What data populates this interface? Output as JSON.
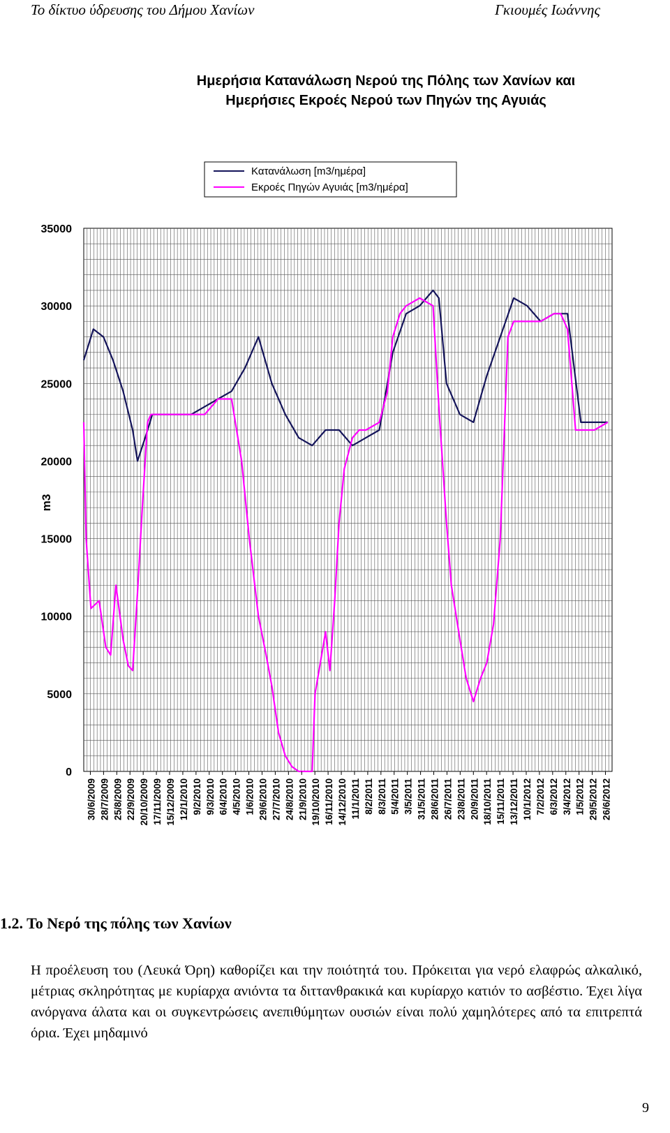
{
  "header": {
    "left": "Το δίκτυο ύδρευσης του Δήμου Χανίων",
    "right": "Γκιουμές Ιωάννης"
  },
  "chart_data": {
    "type": "line",
    "title_lines": [
      "Ημερήσια Κατανάλωση Νερού της Πόλης των Χανίων και",
      "Ημερήσιες Εκροές Νερού των Πηγών της Αγυιάς"
    ],
    "ylabel": "m3",
    "ylim": [
      0,
      35000
    ],
    "yticks": [
      0,
      5000,
      10000,
      15000,
      20000,
      25000,
      30000,
      35000
    ],
    "grid": true,
    "legend_position": "top-center",
    "x_tick_labels": [
      "30/6/2009",
      "28/7/2009",
      "25/8/2009",
      "22/9/2009",
      "20/10/2009",
      "17/11/2009",
      "15/12/2009",
      "12/1/2010",
      "9/2/2010",
      "9/3/2010",
      "6/4/2010",
      "4/5/2010",
      "1/6/2010",
      "29/6/2010",
      "27/7/2010",
      "24/8/2010",
      "21/9/2010",
      "19/10/2010",
      "16/11/2010",
      "14/12/2010",
      "11/1/2011",
      "8/2/2011",
      "8/3/2011",
      "5/4/2011",
      "3/5/2011",
      "31/5/2011",
      "28/6/2011",
      "26/7/2011",
      "23/8/2011",
      "20/9/2011",
      "18/10/2011",
      "15/11/2011",
      "13/12/2011",
      "10/1/2012",
      "7/2/2012",
      "6/3/2012",
      "3/4/2012",
      "1/5/2012",
      "29/5/2012",
      "26/6/2012"
    ],
    "series": [
      {
        "name": "Κατανάλωση [m3/ημέρα]",
        "color": "#14145a",
        "x": [
          "2009-06-30",
          "2009-07-20",
          "2009-08-10",
          "2009-08-30",
          "2009-09-20",
          "2009-10-10",
          "2009-10-20",
          "2009-11-05",
          "2009-11-20",
          "2009-12-15",
          "2010-01-12",
          "2010-02-09",
          "2010-03-09",
          "2010-04-06",
          "2010-05-04",
          "2010-06-01",
          "2010-06-29",
          "2010-07-27",
          "2010-08-24",
          "2010-09-21",
          "2010-10-19",
          "2010-11-16",
          "2010-12-14",
          "2011-01-11",
          "2011-02-08",
          "2011-03-08",
          "2011-04-05",
          "2011-05-03",
          "2011-05-31",
          "2011-06-28",
          "2011-07-10",
          "2011-07-26",
          "2011-08-23",
          "2011-09-20",
          "2011-10-18",
          "2011-11-15",
          "2011-12-13",
          "2012-01-10",
          "2012-02-07",
          "2012-03-06",
          "2012-04-03",
          "2012-05-01",
          "2012-05-29",
          "2012-06-26"
        ],
        "y": [
          26500,
          28500,
          28000,
          26500,
          24500,
          22000,
          20000,
          21500,
          23000,
          23000,
          23000,
          23000,
          23500,
          24000,
          24500,
          26000,
          28000,
          25000,
          23000,
          21500,
          21000,
          22000,
          22000,
          21000,
          21500,
          22000,
          27000,
          29500,
          30000,
          31000,
          30500,
          25000,
          23000,
          22500,
          25500,
          28000,
          30500,
          30000,
          29000,
          29500,
          29500,
          22500,
          22500,
          22500
        ]
      },
      {
        "name": "Εκροές Πηγών Αγυιάς [m3/ημέρα]",
        "color": "#ff00ff",
        "x": [
          "2009-06-30",
          "2009-07-05",
          "2009-07-15",
          "2009-08-01",
          "2009-08-15",
          "2009-08-25",
          "2009-09-05",
          "2009-09-20",
          "2009-10-01",
          "2009-10-10",
          "2009-10-20",
          "2009-10-30",
          "2009-11-10",
          "2009-11-17",
          "2009-12-15",
          "2010-01-12",
          "2010-02-09",
          "2010-03-09",
          "2010-04-06",
          "2010-05-04",
          "2010-05-25",
          "2010-06-10",
          "2010-06-29",
          "2010-07-15",
          "2010-07-27",
          "2010-08-10",
          "2010-08-24",
          "2010-09-07",
          "2010-09-21",
          "2010-10-05",
          "2010-10-19",
          "2010-10-25",
          "2010-11-05",
          "2010-11-16",
          "2010-11-25",
          "2010-12-05",
          "2010-12-14",
          "2010-12-25",
          "2011-01-11",
          "2011-01-25",
          "2011-02-08",
          "2011-03-08",
          "2011-03-25",
          "2011-04-05",
          "2011-04-20",
          "2011-05-03",
          "2011-05-31",
          "2011-06-28",
          "2011-07-10",
          "2011-07-26",
          "2011-08-05",
          "2011-08-23",
          "2011-09-05",
          "2011-09-20",
          "2011-10-05",
          "2011-10-18",
          "2011-11-01",
          "2011-11-15",
          "2011-12-01",
          "2011-12-13",
          "2012-01-10",
          "2012-02-07",
          "2012-03-06",
          "2012-03-20",
          "2012-04-03",
          "2012-04-20",
          "2012-05-01",
          "2012-05-29",
          "2012-06-26"
        ],
        "y": [
          22500,
          15000,
          10500,
          11000,
          8000,
          7500,
          12000,
          8500,
          6800,
          6500,
          11500,
          17000,
          22500,
          23000,
          23000,
          23000,
          23000,
          23000,
          24000,
          24000,
          20000,
          15000,
          10000,
          7500,
          5500,
          2500,
          1000,
          300,
          0,
          0,
          0,
          5000,
          7000,
          9000,
          6500,
          11000,
          16000,
          19500,
          21500,
          22000,
          22000,
          22500,
          24500,
          28000,
          29500,
          30000,
          30500,
          30000,
          23500,
          16000,
          12000,
          8500,
          6000,
          4500,
          6000,
          7000,
          9500,
          15000,
          28000,
          29000,
          29000,
          29000,
          29500,
          29500,
          28500,
          22000,
          22000,
          22000,
          22500
        ]
      }
    ]
  },
  "section": {
    "number": "1.2.",
    "title": "Το Νερό της πόλης των Χανίων"
  },
  "paragraph": "Η προέλευση του (Λευκά Όρη) καθορίζει και την ποιότητά του. Πρόκειται για νερό ελαφρώς αλκαλικό, μέτριας σκληρότητας με κυρίαρχα ανιόντα τα διττανθρακικά και κυρίαρχο κατιόν το ασβέστιο. Έχει λίγα ανόργανα άλατα και οι συγκεντρώσεις ανεπιθύμητων ουσιών είναι πολύ χαμηλότερες από τα επιτρεπτά όρια. Έχει μηδαμινό",
  "page_number": "9"
}
